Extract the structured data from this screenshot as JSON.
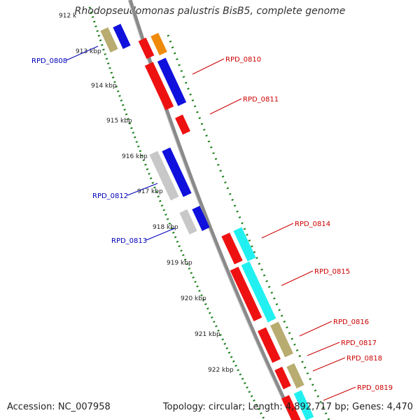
{
  "title": "Rhodopseudomonas palustris BisB5, complete genome",
  "footer": {
    "accession": "Accession: NC_007958",
    "summary": "Topology: circular; Length: 4,892,717 bp; Genes: 4,470"
  },
  "colors": {
    "backbone": "#8a8a8a",
    "tick": "#1a7f1a",
    "label_red": "#cc0000",
    "label_blue": "#0000bb"
  },
  "ticks": [
    {
      "label": "912 k"
    },
    {
      "label": "913 kbp"
    },
    {
      "label": "914 kbp"
    },
    {
      "label": "915 kbp"
    },
    {
      "label": "916 kbp"
    },
    {
      "label": "917 kbp"
    },
    {
      "label": "918 kbp"
    },
    {
      "label": "919 kbp"
    },
    {
      "label": "920 kbp"
    },
    {
      "label": "921 kbp"
    },
    {
      "label": "922 kbp"
    }
  ],
  "gene_labels": [
    {
      "id": "RPD_0808",
      "strand": "minus"
    },
    {
      "id": "RPD_0810",
      "strand": "plus"
    },
    {
      "id": "RPD_0811",
      "strand": "plus"
    },
    {
      "id": "RPD_0812",
      "strand": "minus"
    },
    {
      "id": "RPD_0813",
      "strand": "minus"
    },
    {
      "id": "RPD_0814",
      "strand": "plus"
    },
    {
      "id": "RPD_0815",
      "strand": "plus"
    },
    {
      "id": "RPD_0816",
      "strand": "plus"
    },
    {
      "id": "RPD_0817",
      "strand": "plus"
    },
    {
      "id": "RPD_0818",
      "strand": "plus"
    },
    {
      "id": "RPD_0819",
      "strand": "plus"
    }
  ]
}
